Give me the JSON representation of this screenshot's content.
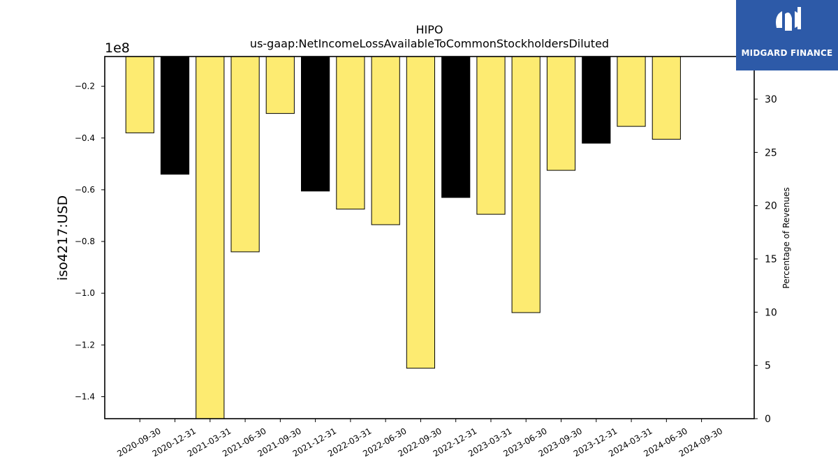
{
  "logo": {
    "text": "MIDGARD FINANCE",
    "icon": "midgard-m-logo-icon",
    "background": "#2d5aa8"
  },
  "chart_data": {
    "type": "bar",
    "title": "HIPO",
    "subtitle": "us-gaap:NetIncomeLossAvailableToCommonStockholdersDiluted",
    "ylabel": "iso4217:USD",
    "y_offset_label": "1e8",
    "ylabel_right": "Percentage of Revenues",
    "categories": [
      "2020-09-30",
      "2020-12-31",
      "2021-03-31",
      "2021-06-30",
      "2021-09-30",
      "2021-12-31",
      "2022-03-31",
      "2022-06-30",
      "2022-09-30",
      "2022-12-31",
      "2023-03-31",
      "2023-06-30",
      "2023-09-30",
      "2023-12-31",
      "2024-03-31",
      "2024-06-30",
      "2024-09-30"
    ],
    "values": [
      -38000000,
      -54000000,
      -152000000,
      -84000000,
      -30500000,
      -60500000,
      -67500000,
      -73500000,
      -129000000,
      -63000000,
      -69500000,
      -107500000,
      -52500000,
      -42000000,
      -35500000,
      -40500000,
      null
    ],
    "bar_colors": [
      "#fdeb71",
      "#000000",
      "#fdeb71",
      "#fdeb71",
      "#fdeb71",
      "#000000",
      "#fdeb71",
      "#fdeb71",
      "#fdeb71",
      "#000000",
      "#fdeb71",
      "#fdeb71",
      "#fdeb71",
      "#000000",
      "#fdeb71",
      "#fdeb71",
      "#fdeb71"
    ],
    "ylim": [
      -148500000,
      -8500000
    ],
    "yticks": [
      -140000000,
      -120000000,
      -100000000,
      -80000000,
      -60000000,
      -40000000,
      -20000000
    ],
    "ytick_labels": [
      "−1.4",
      "−1.2",
      "−1.0",
      "−0.8",
      "−0.6",
      "−0.4",
      "−0.2"
    ],
    "y2lim": [
      0,
      34
    ],
    "y2ticks": [
      0,
      5,
      10,
      15,
      20,
      25,
      30
    ],
    "y2tick_labels": [
      "0",
      "5",
      "10",
      "15",
      "20",
      "25",
      "30"
    ],
    "grid": false,
    "legend": "none"
  }
}
